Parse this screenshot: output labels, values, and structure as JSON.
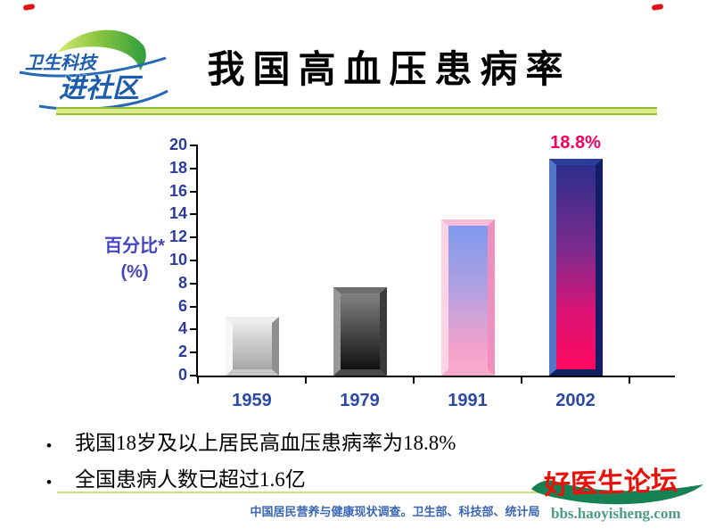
{
  "header": {
    "title": "我国高血压患病率",
    "logo": {
      "line1": "卫生科技",
      "line2": "进社区"
    }
  },
  "bullets": [
    "我国18岁及以上居民高血压患病率为18.8%",
    "全国患病人数已超过1.6亿"
  ],
  "footer": {
    "text": "中国居民营养与健康现状调查。卫生部、科技部、统计局",
    "color": "#3a66b5"
  },
  "branding": {
    "name": "好医生论坛",
    "url": "bbs.haoyisheng.com",
    "name_color": "#e8120b",
    "url_color": "#4c9c86",
    "swoosh_color": "#168152"
  },
  "colors": {
    "title_divider_green": "#94be3a",
    "title_divider_fill": "#dcea8c",
    "footer_divider_green": "#c9e07e",
    "corner_mark_red": "#e11414",
    "logo_blue": "#1c5cad",
    "logo_green": "#66b53a",
    "annotation_pink": "#f4005f"
  },
  "chart_data": {
    "type": "bar",
    "title": "我国高血压患病率",
    "categories": [
      "1959",
      "1979",
      "1991",
      "2002"
    ],
    "values": [
      5.1,
      7.7,
      13.6,
      18.8
    ],
    "xlabel": "",
    "ylabel": "百分比* (%)",
    "ylabel_lines": [
      "百分比*",
      "(%)"
    ],
    "ylim": [
      0,
      20
    ],
    "yticks": [
      0,
      2,
      4,
      6,
      8,
      10,
      12,
      14,
      16,
      18,
      20
    ],
    "grid": false,
    "legend": false,
    "annotation": {
      "text": "18.8%",
      "category": "2002",
      "color": "#f4005f"
    },
    "axis_color": "#000000",
    "tick_label_color": "#2b3c9e",
    "category_label_color": "#2b49a5",
    "ylabel_color": "#4444c4",
    "bars": [
      {
        "category": "1959",
        "bevel": {
          "left": "#f7f7f7",
          "top": "#eeeeee",
          "right": "#8f8f8f",
          "bottom": "#c6c6c6"
        },
        "fill": [
          "#e9e9e9 0%",
          "#a6a6a6 100%"
        ]
      },
      {
        "category": "1979",
        "bevel": {
          "left": "#979797",
          "top": "#6e6e6e",
          "right": "#3a3a3a",
          "bottom": "#4a4a4a"
        },
        "fill": [
          "#828282 0%",
          "#111111 100%"
        ]
      },
      {
        "category": "1991",
        "bevel": {
          "left": "#fcd2e5",
          "top": "#f9bbd7",
          "right": "#ee8fbe",
          "bottom": "#f5a9cd"
        },
        "fill": [
          "#7e9aee 0%",
          "#b3a0e2 45%",
          "#f2a2cc 85%",
          "#f9abcf 100%"
        ]
      },
      {
        "category": "2002",
        "bevel": {
          "left": "#5377c8",
          "top": "#2a3d9b",
          "right": "#141d63",
          "bottom": "#0e2060"
        },
        "fill": [
          "#2c2e8c 0%",
          "#7e2b8e 42%",
          "#dc1374 72%",
          "#fe0961 100%"
        ]
      }
    ]
  }
}
